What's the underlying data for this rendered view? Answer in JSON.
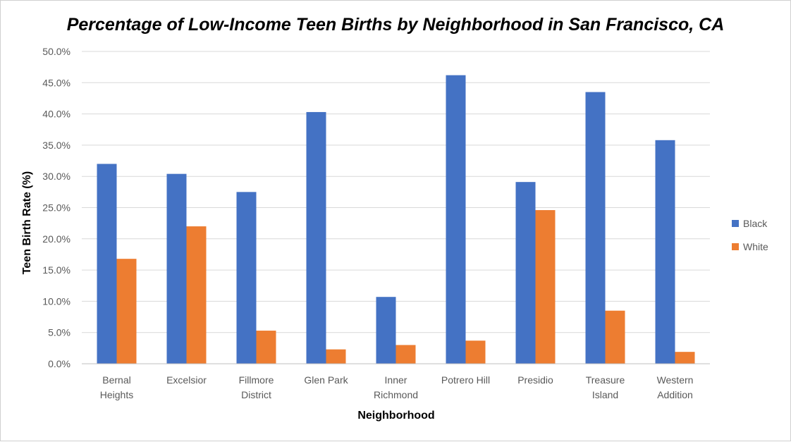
{
  "chart_data": {
    "type": "bar",
    "title": "Percentage of Low-Income Teen Births by Neighborhood in San Francisco, CA",
    "xlabel": "Neighborhood",
    "ylabel": "Teen Birth Rate (%)",
    "ylim": [
      0,
      50
    ],
    "yticks": [
      "0.0%",
      "5.0%",
      "10.0%",
      "15.0%",
      "20.0%",
      "25.0%",
      "30.0%",
      "35.0%",
      "40.0%",
      "45.0%",
      "50.0%"
    ],
    "grid": true,
    "legend_position": "right",
    "categories": [
      [
        "Bernal",
        "Heights"
      ],
      [
        "Excelsior"
      ],
      [
        "Fillmore",
        "District"
      ],
      [
        "Glen Park"
      ],
      [
        "Inner",
        "Richmond"
      ],
      [
        "Potrero Hill"
      ],
      [
        "Presidio"
      ],
      [
        "Treasure",
        "Island"
      ],
      [
        "Western",
        "Addition"
      ]
    ],
    "series": [
      {
        "name": "Black",
        "color": "#4472C4",
        "values": [
          32.0,
          30.4,
          27.5,
          40.3,
          10.7,
          46.2,
          29.1,
          43.5,
          35.8
        ]
      },
      {
        "name": "White",
        "color": "#ED7D31",
        "values": [
          16.8,
          22.0,
          5.3,
          2.3,
          3.0,
          3.7,
          24.6,
          8.5,
          1.9
        ]
      }
    ]
  }
}
